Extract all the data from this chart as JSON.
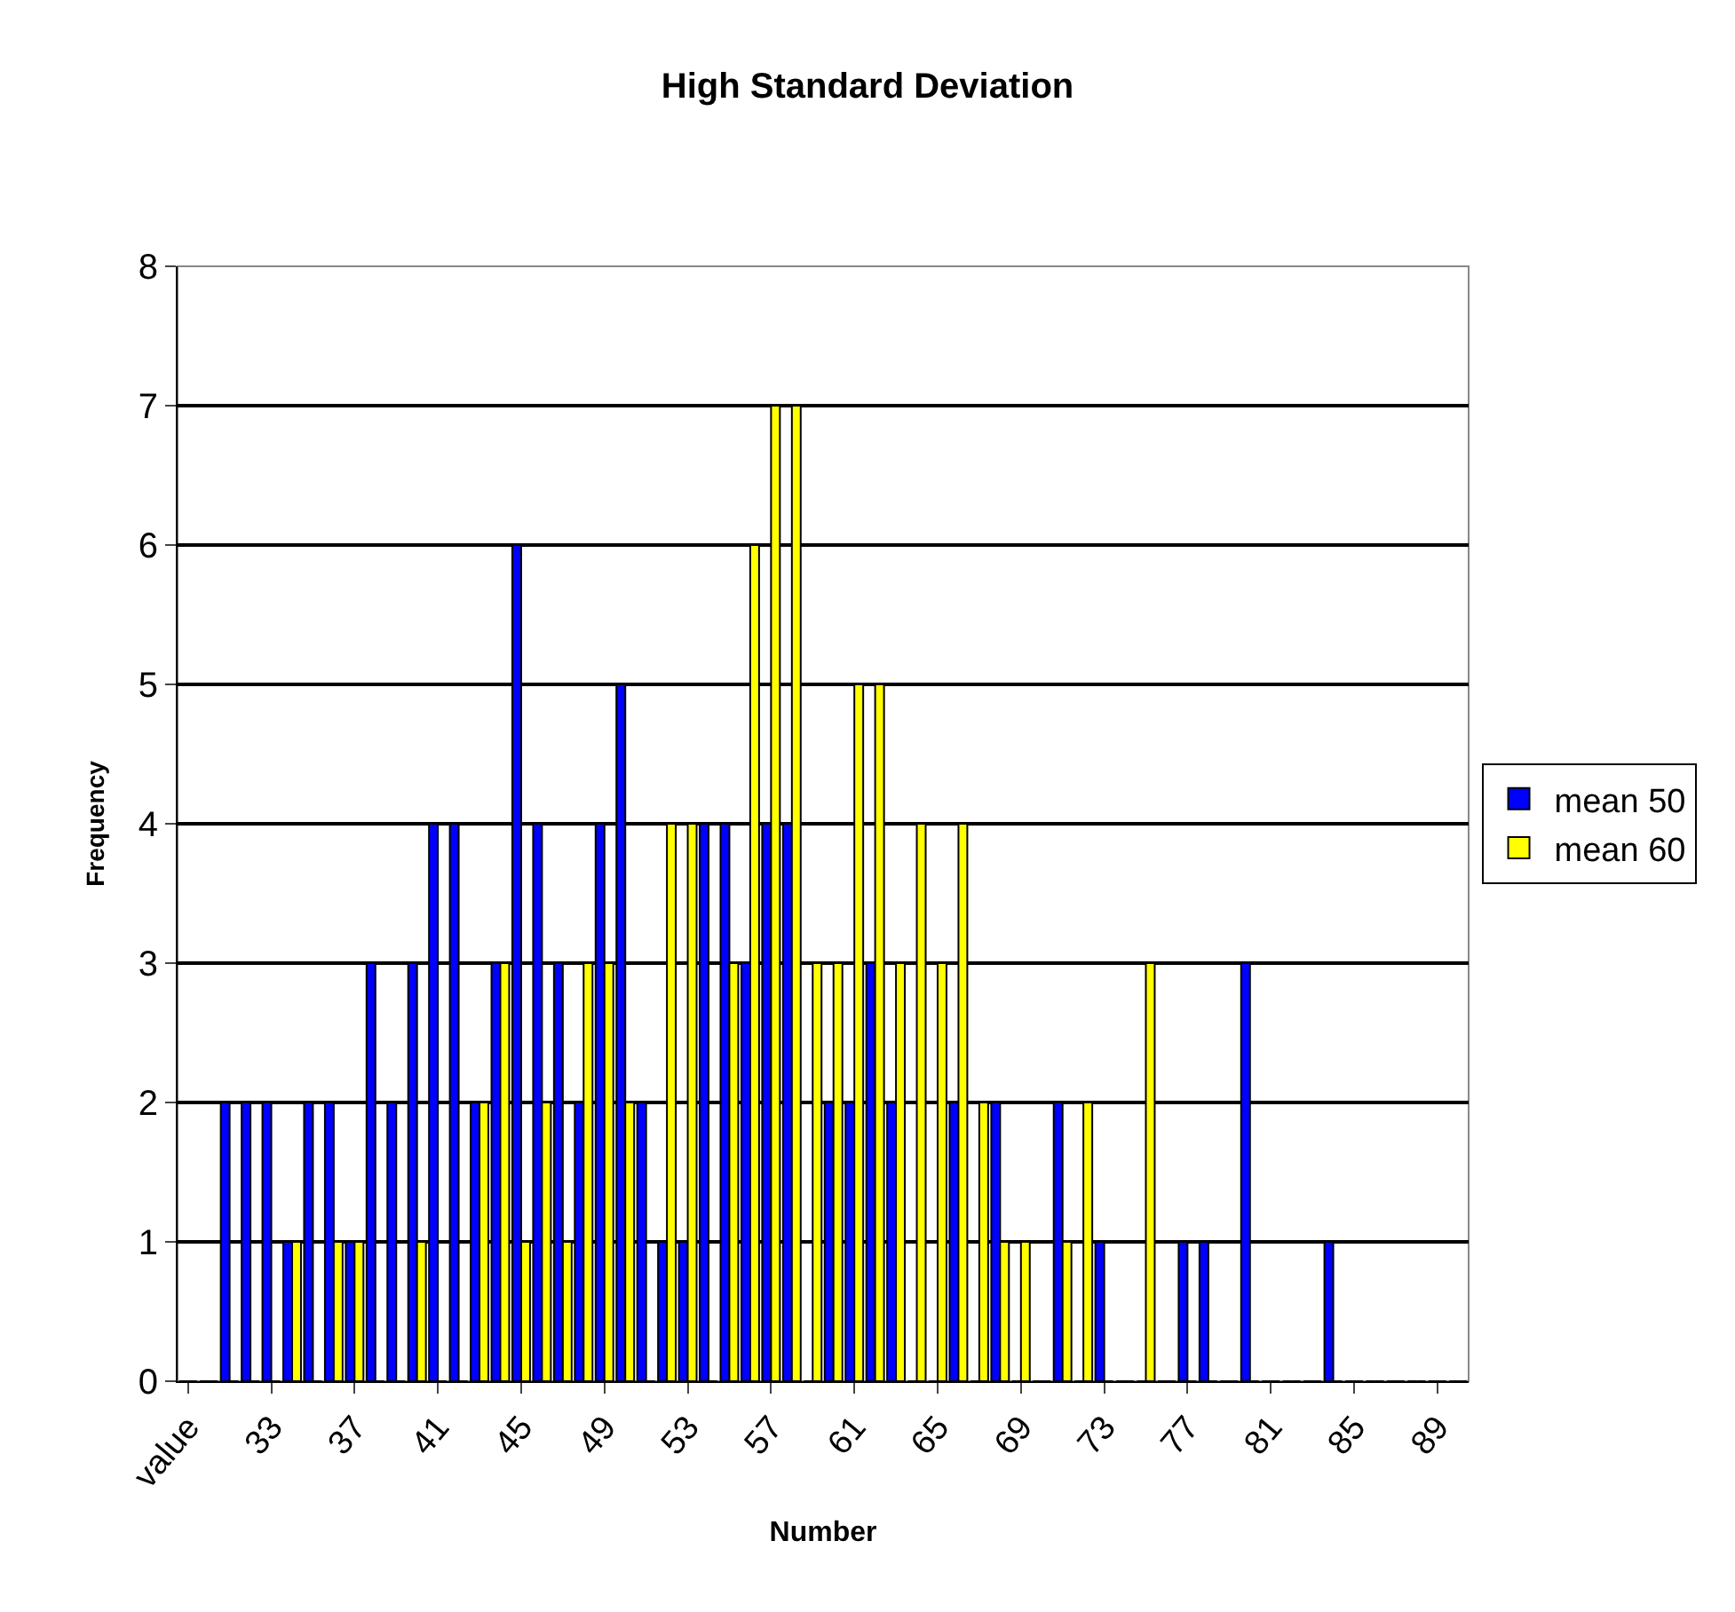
{
  "chart_data": {
    "type": "bar",
    "title": "High Standard Deviation",
    "xlabel": "Number",
    "ylabel": "Frequency",
    "categories": [
      "value",
      null,
      null,
      null,
      "33",
      null,
      null,
      null,
      "37",
      null,
      null,
      null,
      "41",
      null,
      null,
      null,
      "45",
      null,
      null,
      null,
      "49",
      null,
      null,
      null,
      "53",
      null,
      null,
      null,
      "57",
      null,
      null,
      null,
      "61",
      null,
      null,
      null,
      "65",
      null,
      null,
      null,
      "69",
      null,
      null,
      null,
      "73",
      null,
      null,
      null,
      "77",
      null,
      null,
      null,
      "81",
      null,
      null,
      null,
      "85",
      null,
      null,
      null,
      "89",
      null
    ],
    "series": [
      {
        "name": "mean 50",
        "color": "#0000ff",
        "values": [
          0,
          0,
          2,
          2,
          2,
          1,
          2,
          2,
          1,
          3,
          2,
          3,
          4,
          4,
          2,
          3,
          6,
          4,
          3,
          2,
          4,
          5,
          2,
          1,
          1,
          4,
          4,
          3,
          4,
          4,
          0,
          2,
          2,
          3,
          2,
          0,
          0,
          2,
          0,
          2,
          0,
          0,
          2,
          0,
          1,
          0,
          0,
          0,
          1,
          1,
          0,
          3,
          0,
          0,
          0,
          1,
          0,
          0,
          0,
          0,
          0,
          0
        ]
      },
      {
        "name": "mean 60",
        "color": "#ffff00",
        "values": [
          0,
          0,
          0,
          0,
          0,
          1,
          0,
          1,
          1,
          0,
          0,
          1,
          0,
          0,
          2,
          3,
          1,
          2,
          1,
          3,
          3,
          2,
          0,
          4,
          4,
          0,
          3,
          6,
          7,
          7,
          3,
          3,
          5,
          5,
          3,
          4,
          3,
          4,
          2,
          1,
          1,
          0,
          1,
          2,
          0,
          0,
          3,
          0,
          0,
          0,
          0,
          0,
          0,
          0,
          0,
          0,
          0,
          0,
          0,
          0,
          0,
          0
        ]
      }
    ],
    "ylim": [
      0,
      8
    ],
    "yticks": [
      0,
      1,
      2,
      3,
      4,
      5,
      6,
      7,
      8
    ],
    "grid": "y",
    "legend": "right"
  }
}
